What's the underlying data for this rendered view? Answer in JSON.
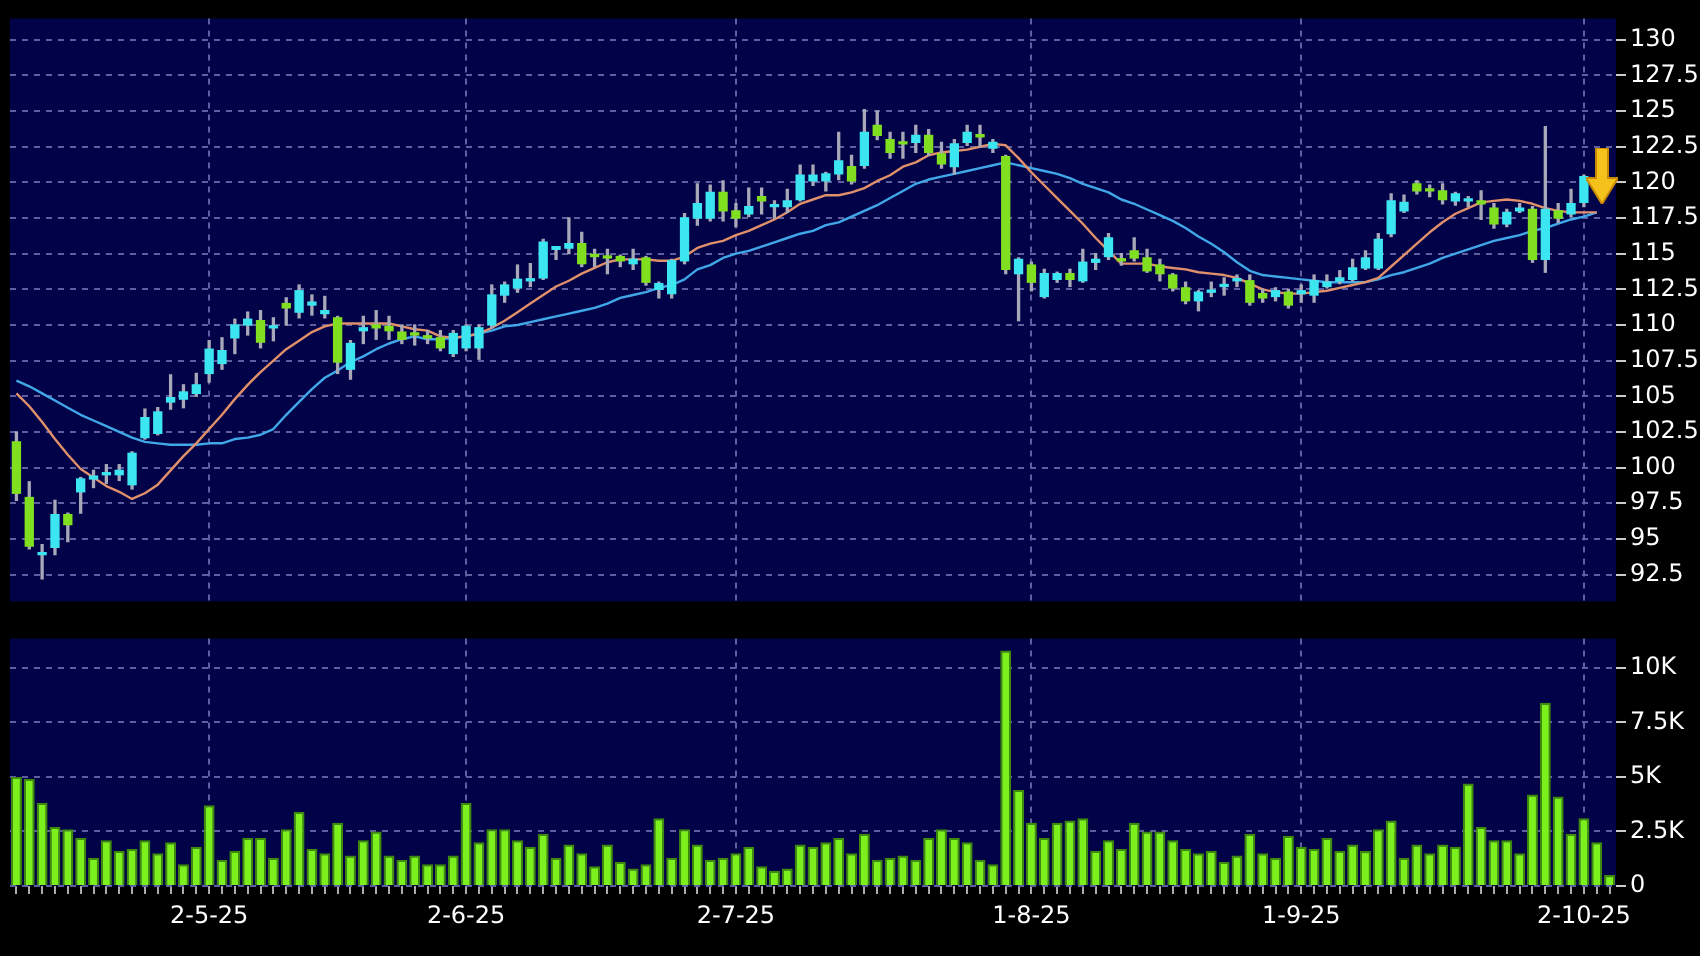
{
  "chart_data": [
    {
      "type": "candlestick",
      "tick_labels": "y",
      "grid": true,
      "marker": "none",
      "line_style": "solid",
      "categories": [
        null,
        null,
        null,
        null,
        null,
        null,
        null,
        null,
        null,
        null,
        null,
        null,
        null,
        null,
        null,
        null,
        null,
        null,
        null,
        null,
        null,
        null,
        null,
        null,
        null,
        null,
        null,
        null,
        null,
        null,
        null,
        null,
        null,
        null,
        null,
        null,
        null,
        null,
        null,
        null,
        null,
        null,
        null,
        null,
        null,
        null,
        null,
        null,
        null,
        null,
        null,
        null,
        null,
        null,
        null,
        null,
        null,
        null,
        null,
        null,
        null,
        null,
        null,
        null,
        null,
        null,
        null,
        null,
        null,
        null,
        null,
        null,
        null,
        null,
        null,
        null,
        null,
        null,
        null,
        null,
        null,
        null,
        null,
        null,
        null,
        null,
        null,
        null,
        null,
        null,
        null,
        null,
        null,
        null,
        null,
        null,
        null,
        null,
        null,
        null,
        null,
        null,
        null,
        null,
        null,
        null,
        null,
        null,
        null,
        null,
        null,
        null,
        null,
        null,
        null,
        null,
        null,
        null,
        null,
        null,
        null,
        null,
        null,
        null,
        null
      ],
      "ylim": [
        90.6,
        131.5
      ],
      "yticks": [
        92.5,
        95,
        97.5,
        100,
        102.5,
        105,
        107.5,
        110,
        112.5,
        115,
        117.5,
        120,
        122.5,
        125,
        127.5,
        130
      ],
      "ohlc": [
        [
          101.8,
          102.5,
          97.7,
          98.2
        ],
        [
          97.9,
          99.0,
          94.3,
          94.5
        ],
        [
          93.9,
          94.6,
          92.2,
          94.0
        ],
        [
          94.4,
          97.7,
          93.9,
          96.7
        ],
        [
          96.7,
          96.8,
          94.8,
          96.0
        ],
        [
          98.3,
          99.3,
          96.8,
          99.2
        ],
        [
          99.2,
          99.8,
          98.6,
          99.4
        ],
        [
          99.5,
          100.2,
          98.9,
          99.6
        ],
        [
          99.5,
          100.2,
          99.1,
          99.8
        ],
        [
          98.8,
          101.1,
          98.5,
          101.0
        ],
        [
          102.1,
          104.1,
          102.0,
          103.5
        ],
        [
          102.4,
          104.2,
          102.3,
          103.9
        ],
        [
          104.6,
          106.5,
          104.1,
          104.9
        ],
        [
          104.8,
          105.8,
          104.2,
          105.3
        ],
        [
          105.2,
          106.6,
          105.0,
          105.8
        ],
        [
          106.6,
          108.9,
          106.0,
          108.3
        ],
        [
          107.3,
          109.1,
          106.9,
          108.2
        ],
        [
          109.1,
          110.4,
          108.0,
          110.0
        ],
        [
          110.0,
          110.9,
          109.3,
          110.4
        ],
        [
          110.3,
          111.0,
          108.4,
          108.8
        ],
        [
          109.8,
          110.5,
          108.9,
          109.9
        ],
        [
          111.5,
          111.9,
          110.0,
          111.2
        ],
        [
          110.9,
          112.8,
          110.5,
          112.4
        ],
        [
          111.4,
          112.1,
          110.7,
          111.6
        ],
        [
          110.8,
          112.0,
          110.5,
          111.0
        ],
        [
          110.5,
          110.6,
          106.6,
          107.4
        ],
        [
          106.9,
          108.9,
          106.2,
          108.7
        ],
        [
          109.6,
          110.6,
          108.7,
          109.8
        ],
        [
          110.0,
          111.0,
          109.0,
          109.8
        ],
        [
          109.9,
          110.6,
          109.0,
          109.6
        ],
        [
          109.5,
          110.0,
          108.7,
          109.0
        ],
        [
          109.4,
          110.0,
          108.6,
          109.3
        ],
        [
          109.2,
          109.6,
          108.7,
          109.1
        ],
        [
          109.1,
          109.6,
          108.2,
          108.4
        ],
        [
          108.0,
          109.6,
          107.8,
          109.4
        ],
        [
          108.4,
          110.0,
          108.2,
          109.9
        ],
        [
          108.4,
          110.0,
          107.6,
          109.8
        ],
        [
          110.0,
          112.8,
          109.8,
          112.1
        ],
        [
          112.1,
          113.0,
          111.6,
          112.8
        ],
        [
          112.6,
          114.2,
          112.3,
          113.2
        ],
        [
          113.1,
          114.3,
          112.7,
          113.2
        ],
        [
          113.3,
          116.0,
          113.2,
          115.8
        ],
        [
          115.3,
          115.5,
          114.6,
          115.5
        ],
        [
          115.4,
          117.5,
          115.0,
          115.7
        ],
        [
          115.7,
          116.5,
          114.1,
          114.3
        ],
        [
          114.9,
          115.3,
          114.1,
          114.8
        ],
        [
          114.8,
          115.3,
          113.6,
          114.7
        ],
        [
          114.8,
          114.9,
          114.1,
          114.5
        ],
        [
          114.3,
          115.3,
          113.9,
          114.6
        ],
        [
          114.7,
          114.8,
          112.8,
          113.0
        ],
        [
          112.5,
          113.0,
          111.9,
          112.9
        ],
        [
          112.2,
          114.6,
          111.9,
          114.5
        ],
        [
          114.5,
          117.8,
          114.3,
          117.5
        ],
        [
          117.5,
          119.9,
          117.0,
          118.5
        ],
        [
          117.5,
          119.8,
          117.3,
          119.3
        ],
        [
          119.3,
          120.1,
          117.3,
          118.0
        ],
        [
          118.0,
          118.5,
          116.9,
          117.5
        ],
        [
          117.8,
          119.6,
          117.6,
          118.3
        ],
        [
          119.0,
          119.6,
          117.8,
          118.7
        ],
        [
          118.3,
          118.7,
          117.5,
          118.4
        ],
        [
          118.3,
          119.5,
          117.9,
          118.7
        ],
        [
          118.8,
          121.2,
          118.7,
          120.5
        ],
        [
          120.1,
          121.2,
          119.8,
          120.5
        ],
        [
          120.1,
          120.7,
          119.4,
          120.6
        ],
        [
          120.6,
          123.5,
          120.2,
          121.5
        ],
        [
          121.1,
          121.9,
          119.9,
          120.1
        ],
        [
          121.2,
          125.1,
          121.0,
          123.5
        ],
        [
          124.0,
          125.0,
          123.0,
          123.3
        ],
        [
          123.0,
          123.5,
          121.7,
          122.1
        ],
        [
          122.8,
          123.5,
          121.7,
          122.7
        ],
        [
          122.8,
          124.0,
          122.1,
          123.3
        ],
        [
          123.3,
          123.7,
          121.9,
          122.1
        ],
        [
          122.0,
          122.8,
          121.0,
          121.3
        ],
        [
          121.1,
          123.0,
          120.6,
          122.7
        ],
        [
          122.8,
          124.0,
          122.6,
          123.5
        ],
        [
          123.3,
          124.0,
          122.5,
          123.2
        ],
        [
          122.4,
          123.0,
          122.1,
          122.8
        ],
        [
          121.8,
          121.9,
          113.6,
          113.9
        ],
        [
          113.6,
          114.7,
          110.3,
          114.6
        ],
        [
          114.2,
          114.4,
          112.4,
          113.0
        ],
        [
          112.0,
          113.9,
          111.9,
          113.6
        ],
        [
          113.2,
          113.7,
          113.0,
          113.6
        ],
        [
          113.6,
          113.9,
          112.7,
          113.2
        ],
        [
          113.1,
          115.3,
          113.0,
          114.4
        ],
        [
          114.4,
          115.0,
          113.9,
          114.6
        ],
        [
          114.8,
          116.4,
          114.6,
          116.1
        ],
        [
          114.6,
          115.0,
          114.2,
          114.5
        ],
        [
          115.2,
          116.1,
          114.5,
          114.7
        ],
        [
          114.7,
          115.3,
          113.7,
          113.8
        ],
        [
          114.2,
          114.6,
          113.1,
          113.6
        ],
        [
          113.5,
          113.6,
          112.4,
          112.6
        ],
        [
          112.6,
          113.0,
          111.5,
          111.7
        ],
        [
          111.7,
          112.4,
          111.0,
          112.3
        ],
        [
          112.3,
          113.0,
          112.0,
          112.4
        ],
        [
          112.7,
          113.3,
          112.1,
          112.8
        ],
        [
          113.1,
          113.5,
          112.7,
          113.2
        ],
        [
          113.1,
          113.5,
          111.4,
          111.6
        ],
        [
          112.2,
          112.5,
          111.6,
          111.9
        ],
        [
          112.0,
          112.6,
          111.7,
          112.4
        ],
        [
          112.3,
          112.5,
          111.2,
          111.4
        ],
        [
          112.2,
          112.8,
          111.6,
          112.4
        ],
        [
          112.1,
          113.5,
          111.6,
          113.1
        ],
        [
          112.7,
          113.5,
          112.6,
          113.0
        ],
        [
          113.1,
          113.8,
          112.9,
          113.3
        ],
        [
          113.2,
          114.6,
          113.1,
          114.0
        ],
        [
          114.0,
          115.2,
          113.9,
          114.7
        ],
        [
          114.0,
          116.4,
          113.9,
          116.0
        ],
        [
          116.4,
          119.2,
          116.2,
          118.7
        ],
        [
          118.0,
          119.1,
          117.9,
          118.6
        ],
        [
          119.9,
          120.1,
          119.2,
          119.4
        ],
        [
          119.5,
          119.8,
          119.0,
          119.4
        ],
        [
          119.4,
          119.9,
          118.5,
          118.8
        ],
        [
          118.7,
          119.3,
          118.4,
          119.2
        ],
        [
          118.7,
          119.0,
          118.3,
          118.8
        ],
        [
          118.7,
          119.4,
          117.4,
          118.5
        ],
        [
          118.2,
          118.5,
          116.8,
          117.1
        ],
        [
          117.1,
          118.1,
          116.9,
          117.9
        ],
        [
          118.0,
          118.5,
          117.9,
          118.2
        ],
        [
          118.1,
          118.3,
          114.4,
          114.6
        ],
        [
          114.6,
          123.9,
          113.7,
          118.1
        ],
        [
          118.0,
          118.5,
          117.2,
          117.5
        ],
        [
          117.8,
          119.5,
          117.6,
          118.5
        ],
        [
          118.6,
          120.5,
          118.3,
          120.4
        ],
        null,
        null
      ],
      "series": [
        {
          "type": "line",
          "color": "#e0906a",
          "values": [
            105.2,
            104.3,
            103.2,
            102.0,
            100.9,
            99.9,
            99.3,
            98.7,
            98.3,
            97.8,
            98.2,
            98.8,
            99.8,
            100.8,
            101.7,
            102.7,
            103.7,
            104.8,
            105.8,
            106.7,
            107.5,
            108.3,
            108.9,
            109.5,
            109.9,
            110.1,
            110.1,
            110.1,
            110.1,
            110.1,
            109.9,
            109.7,
            109.6,
            109.2,
            109.1,
            109.2,
            109.4,
            109.8,
            110.3,
            110.9,
            111.5,
            112.1,
            112.7,
            113.1,
            113.6,
            114.0,
            114.4,
            114.6,
            114.6,
            114.6,
            114.5,
            114.5,
            114.8,
            115.4,
            115.7,
            115.9,
            116.3,
            116.6,
            117.0,
            117.4,
            117.9,
            118.5,
            118.8,
            119.1,
            119.1,
            119.3,
            119.6,
            120.1,
            120.5,
            121.1,
            121.4,
            121.9,
            122.1,
            122.2,
            122.3,
            122.5,
            122.7,
            122.6,
            121.7,
            120.7,
            119.8,
            118.9,
            118.0,
            117.1,
            116.1,
            115.2,
            114.3,
            114.3,
            114.3,
            114.1,
            114.0,
            113.9,
            113.7,
            113.6,
            113.5,
            113.3,
            112.9,
            112.5,
            112.3,
            112.2,
            112.2,
            112.3,
            112.4,
            112.6,
            112.8,
            113.0,
            113.3,
            114.1,
            114.9,
            115.7,
            116.5,
            117.2,
            117.8,
            118.2,
            118.6,
            118.7,
            118.8,
            118.7,
            118.5,
            118.2,
            118.0,
            117.9,
            117.9,
            117.9,
            null
          ]
        },
        {
          "type": "line",
          "color": "#40a8e8",
          "values": [
            106.1,
            105.7,
            105.2,
            104.7,
            104.2,
            103.7,
            103.3,
            102.9,
            102.5,
            102.1,
            101.8,
            101.7,
            101.6,
            101.6,
            101.6,
            101.7,
            101.7,
            102.0,
            102.1,
            102.3,
            102.7,
            103.7,
            104.6,
            105.5,
            106.3,
            106.8,
            107.4,
            107.8,
            108.3,
            108.7,
            109.0,
            109.2,
            109.0,
            109.0,
            109.1,
            109.2,
            109.4,
            109.6,
            109.9,
            110.0,
            110.2,
            110.4,
            110.6,
            110.8,
            111.0,
            111.2,
            111.5,
            111.9,
            112.1,
            112.3,
            112.6,
            112.8,
            113.2,
            113.9,
            114.2,
            114.7,
            115.0,
            115.2,
            115.5,
            115.8,
            116.1,
            116.4,
            116.6,
            117.0,
            117.2,
            117.6,
            118.0,
            118.4,
            118.9,
            119.4,
            119.9,
            120.2,
            120.4,
            120.6,
            120.8,
            121.0,
            121.2,
            121.4,
            121.2,
            121.0,
            120.8,
            120.6,
            120.3,
            119.9,
            119.6,
            119.3,
            118.8,
            118.5,
            118.1,
            117.7,
            117.3,
            116.8,
            116.2,
            115.7,
            115.1,
            114.4,
            113.8,
            113.5,
            113.4,
            113.3,
            113.2,
            113.1,
            113.0,
            113.0,
            113.0,
            113.0,
            113.2,
            113.5,
            113.7,
            114.0,
            114.3,
            114.7,
            115.0,
            115.3,
            115.6,
            115.9,
            116.1,
            116.3,
            116.6,
            116.8,
            117.1,
            117.4,
            117.6,
            117.9,
            null
          ]
        }
      ]
    },
    {
      "type": "bar",
      "grid": true,
      "color": "#7cf01c",
      "categories": [
        null,
        null,
        null,
        null,
        null,
        null,
        null,
        null,
        null,
        null,
        null,
        null,
        null,
        null,
        null,
        "2-5-25",
        null,
        null,
        null,
        null,
        null,
        null,
        null,
        null,
        null,
        null,
        null,
        null,
        null,
        null,
        null,
        null,
        null,
        null,
        null,
        "2-6-25",
        null,
        null,
        null,
        null,
        null,
        null,
        null,
        null,
        null,
        null,
        null,
        null,
        null,
        null,
        null,
        null,
        null,
        null,
        null,
        null,
        "2-7-25",
        null,
        null,
        null,
        null,
        null,
        null,
        null,
        null,
        null,
        null,
        null,
        null,
        null,
        null,
        null,
        null,
        null,
        null,
        null,
        null,
        null,
        null,
        "1-8-25",
        null,
        null,
        null,
        null,
        null,
        null,
        null,
        null,
        null,
        null,
        null,
        null,
        null,
        null,
        null,
        null,
        null,
        null,
        null,
        null,
        "1-9-25",
        null,
        null,
        null,
        null,
        null,
        null,
        null,
        null,
        null,
        null,
        null,
        null,
        null,
        null,
        null,
        null,
        null,
        null,
        null,
        null,
        null,
        "2-10-25",
        null,
        null
      ],
      "ylim": [
        0,
        11350
      ],
      "yticks": [
        0,
        {
          "value": 2500,
          "label": "2.5K"
        },
        {
          "value": 5000,
          "label": "5K"
        },
        {
          "value": 7500,
          "label": "7.5K"
        },
        {
          "value": 10000,
          "label": "10K"
        }
      ],
      "values": [
        5000,
        4900,
        3800,
        2700,
        2600,
        2200,
        1300,
        2100,
        1600,
        1700,
        2100,
        1500,
        2000,
        1000,
        1800,
        3700,
        1200,
        1600,
        2200,
        2200,
        1300,
        2600,
        3400,
        1700,
        1500,
        2900,
        1400,
        2100,
        2500,
        1400,
        1200,
        1400,
        1000,
        1000,
        1400,
        3800,
        2000,
        2600,
        2600,
        2100,
        1800,
        2400,
        1300,
        1900,
        1500,
        900,
        1900,
        1100,
        800,
        1000,
        3100,
        1300,
        2600,
        1900,
        1200,
        1300,
        1500,
        1800,
        900,
        700,
        800,
        1900,
        1800,
        2000,
        2200,
        1500,
        2400,
        1200,
        1300,
        1400,
        1200,
        2200,
        2600,
        2200,
        2000,
        1200,
        1000,
        10800,
        4400,
        2900,
        2200,
        2900,
        3000,
        3100,
        1600,
        2100,
        1700,
        2900,
        2500,
        2500,
        2100,
        1700,
        1500,
        1600,
        1100,
        1400,
        2400,
        1500,
        1300,
        2300,
        1800,
        1700,
        2200,
        1600,
        1900,
        1600,
        2600,
        3000,
        1300,
        1900,
        1500,
        1900,
        1800,
        4700,
        2700,
        2100,
        2100,
        1500,
        4200,
        8400,
        4100,
        2400,
        3100,
        2000,
        500
      ]
    }
  ]
}
